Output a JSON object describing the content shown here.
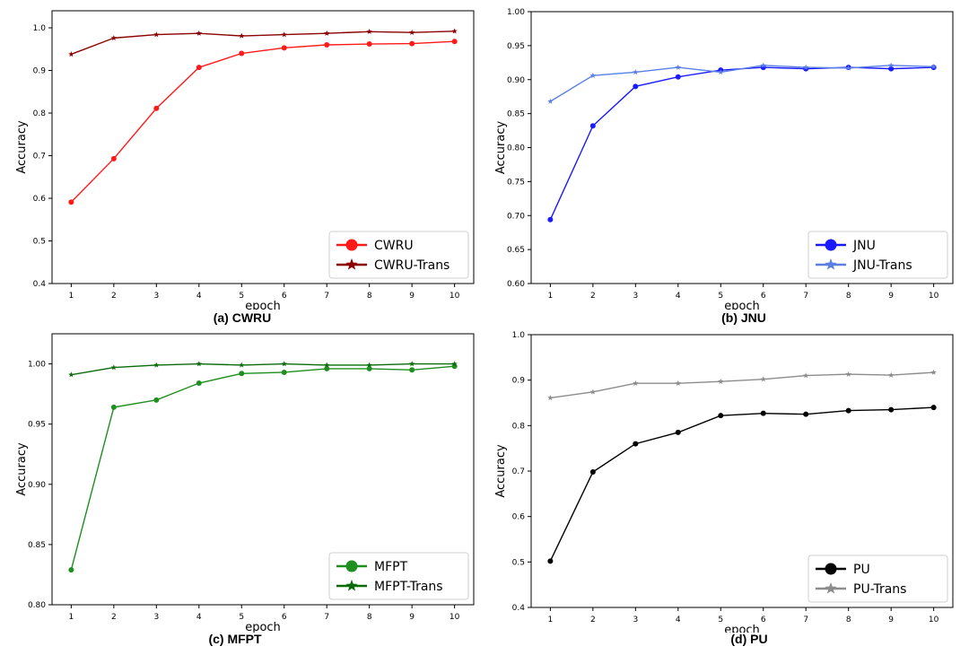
{
  "chart_data": [
    {
      "type": "line",
      "caption": "(a) CWRU",
      "xlabel": "epoch",
      "ylabel": "Accuracy",
      "x": [
        1,
        2,
        3,
        4,
        5,
        6,
        7,
        8,
        9,
        10
      ],
      "xlim": [
        0.55,
        10.45
      ],
      "ylim": [
        0.4,
        1.04
      ],
      "yticks": [
        0.4,
        0.5,
        0.6,
        0.7,
        0.8,
        0.9,
        1.0
      ],
      "ytick_labels": [
        "0.4",
        "0.5",
        "0.6",
        "0.7",
        "0.8",
        "0.9",
        "1.0"
      ],
      "legend_position": "lower-right",
      "series": [
        {
          "name": "CWRU",
          "color": "#ff1a1a",
          "marker": "circle",
          "values": [
            0.591,
            0.693,
            0.811,
            0.907,
            0.94,
            0.953,
            0.96,
            0.962,
            0.963,
            0.968
          ]
        },
        {
          "name": "CWRU-Trans",
          "color": "#8b0000",
          "marker": "star",
          "values": [
            0.938,
            0.976,
            0.984,
            0.987,
            0.981,
            0.984,
            0.987,
            0.991,
            0.989,
            0.992
          ]
        }
      ]
    },
    {
      "type": "line",
      "caption": "(b) JNU",
      "xlabel": "epoch",
      "ylabel": "Accuracy",
      "x": [
        1,
        2,
        3,
        4,
        5,
        6,
        7,
        8,
        9,
        10
      ],
      "xlim": [
        0.55,
        10.45
      ],
      "ylim": [
        0.6,
        1.0
      ],
      "yticks": [
        0.6,
        0.65,
        0.7,
        0.75,
        0.8,
        0.85,
        0.9,
        0.95,
        1.0
      ],
      "ytick_labels": [
        "0.60",
        "0.65",
        "0.70",
        "0.75",
        "0.80",
        "0.85",
        "0.90",
        "0.95",
        "1.00"
      ],
      "legend_position": "lower-right",
      "series": [
        {
          "name": "JNU",
          "color": "#1a1aff",
          "marker": "circle",
          "values": [
            0.694,
            0.832,
            0.89,
            0.904,
            0.914,
            0.918,
            0.916,
            0.918,
            0.916,
            0.918
          ]
        },
        {
          "name": "JNU-Trans",
          "color": "#5b7fe6",
          "marker": "star",
          "values": [
            0.868,
            0.906,
            0.911,
            0.918,
            0.911,
            0.921,
            0.918,
            0.917,
            0.921,
            0.919
          ]
        }
      ]
    },
    {
      "type": "line",
      "caption": "(c) MFPT",
      "xlabel": "epoch",
      "ylabel": "Accuracy",
      "x": [
        1,
        2,
        3,
        4,
        5,
        6,
        7,
        8,
        9,
        10
      ],
      "xlim": [
        0.55,
        10.45
      ],
      "ylim": [
        0.8,
        1.025
      ],
      "yticks": [
        0.8,
        0.85,
        0.9,
        0.95,
        1.0
      ],
      "ytick_labels": [
        "0.80",
        "0.85",
        "0.90",
        "0.95",
        "1.00"
      ],
      "legend_position": "lower-right",
      "series": [
        {
          "name": "MFPT",
          "color": "#1f8f1f",
          "marker": "circle",
          "values": [
            0.829,
            0.964,
            0.97,
            0.984,
            0.992,
            0.993,
            0.996,
            0.996,
            0.995,
            0.998
          ]
        },
        {
          "name": "MFPT-Trans",
          "color": "#0b6b0b",
          "marker": "star",
          "values": [
            0.991,
            0.997,
            0.999,
            1.0,
            0.999,
            1.0,
            0.999,
            0.999,
            1.0,
            1.0
          ]
        }
      ]
    },
    {
      "type": "line",
      "caption": "(d) PU",
      "xlabel": "epoch",
      "ylabel": "Accuracy",
      "x": [
        1,
        2,
        3,
        4,
        5,
        6,
        7,
        8,
        9,
        10
      ],
      "xlim": [
        0.55,
        10.45
      ],
      "ylim": [
        0.4,
        1.0
      ],
      "yticks": [
        0.4,
        0.5,
        0.6,
        0.7,
        0.8,
        0.9,
        1.0
      ],
      "ytick_labels": [
        "0.4",
        "0.5",
        "0.6",
        "0.7",
        "0.8",
        "0.9",
        "1.0"
      ],
      "legend_position": "lower-right",
      "series": [
        {
          "name": "PU",
          "color": "#000000",
          "marker": "circle",
          "values": [
            0.502,
            0.698,
            0.76,
            0.785,
            0.822,
            0.827,
            0.825,
            0.833,
            0.835,
            0.84
          ]
        },
        {
          "name": "PU-Trans",
          "color": "#8c8c8c",
          "marker": "star",
          "values": [
            0.861,
            0.874,
            0.893,
            0.893,
            0.897,
            0.902,
            0.91,
            0.913,
            0.911,
            0.917
          ]
        }
      ]
    }
  ]
}
